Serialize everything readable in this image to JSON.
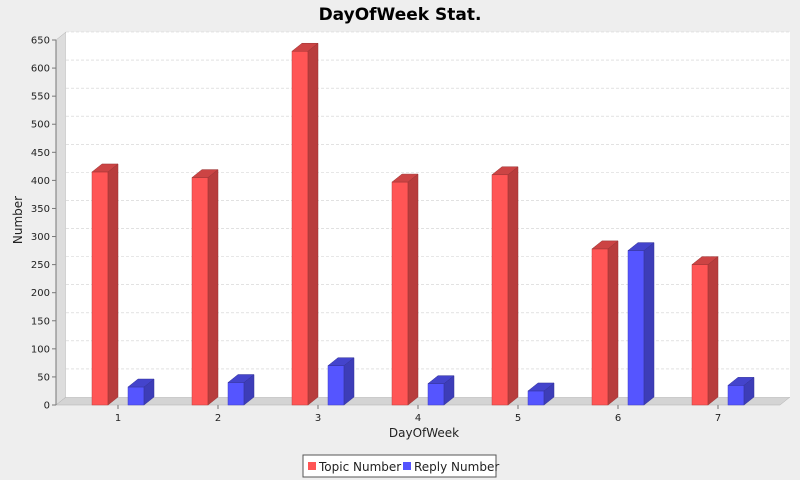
{
  "chart_data": {
    "type": "bar",
    "title": "DayOfWeek Stat.",
    "xlabel": "DayOfWeek",
    "ylabel": "Number",
    "categories": [
      "1",
      "2",
      "3",
      "4",
      "5",
      "6",
      "7"
    ],
    "series": [
      {
        "name": "Topic Number",
        "color": "#ff5555",
        "values": [
          415,
          405,
          630,
          397,
          410,
          278,
          250
        ]
      },
      {
        "name": "Reply Number",
        "color": "#5555ff",
        "values": [
          32,
          40,
          70,
          38,
          25,
          275,
          35
        ]
      }
    ],
    "ylim": [
      0,
      650
    ],
    "yticks": [
      0,
      50,
      100,
      150,
      200,
      250,
      300,
      350,
      400,
      450,
      500,
      550,
      600,
      650
    ],
    "grid": true,
    "legend_position": "bottom"
  }
}
